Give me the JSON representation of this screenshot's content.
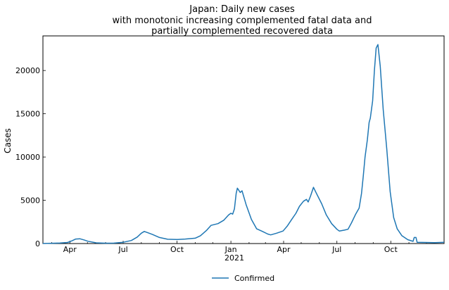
{
  "chart_data": {
    "type": "line",
    "title_lines": [
      "Japan: Daily new cases",
      "with monotonic increasing complemented fatal data and",
      "partially complemented recovered data"
    ],
    "xlabel": "",
    "ylabel": "Cases",
    "x_tick_labels": [
      "Apr",
      "Jul",
      "Oct",
      "Jan",
      "Apr",
      "Jul",
      "Oct"
    ],
    "x_year_label": "2021",
    "y_tick_labels": [
      "0",
      "5000",
      "10000",
      "15000",
      "20000"
    ],
    "ylim": [
      0,
      24000
    ],
    "xlim": [
      "2020-02-15",
      "2021-12-31"
    ],
    "grid": false,
    "legend_position": "bottom-center",
    "series": [
      {
        "name": "Confirmed",
        "color": "#1f77b4",
        "points": [
          [
            "2020-02-15",
            5
          ],
          [
            "2020-03-01",
            30
          ],
          [
            "2020-03-15",
            60
          ],
          [
            "2020-03-28",
            120
          ],
          [
            "2020-04-04",
            300
          ],
          [
            "2020-04-11",
            520
          ],
          [
            "2020-04-18",
            550
          ],
          [
            "2020-04-25",
            420
          ],
          [
            "2020-05-02",
            260
          ],
          [
            "2020-05-16",
            80
          ],
          [
            "2020-06-01",
            40
          ],
          [
            "2020-06-15",
            50
          ],
          [
            "2020-07-01",
            150
          ],
          [
            "2020-07-15",
            350
          ],
          [
            "2020-07-25",
            750
          ],
          [
            "2020-08-01",
            1200
          ],
          [
            "2020-08-06",
            1400
          ],
          [
            "2020-08-12",
            1250
          ],
          [
            "2020-08-20",
            1050
          ],
          [
            "2020-09-01",
            700
          ],
          [
            "2020-09-15",
            500
          ],
          [
            "2020-09-25",
            480
          ],
          [
            "2020-10-01",
            460
          ],
          [
            "2020-10-15",
            520
          ],
          [
            "2020-11-01",
            620
          ],
          [
            "2020-11-10",
            900
          ],
          [
            "2020-11-20",
            1500
          ],
          [
            "2020-11-28",
            2100
          ],
          [
            "2020-12-10",
            2300
          ],
          [
            "2020-12-20",
            2700
          ],
          [
            "2020-12-28",
            3300
          ],
          [
            "2021-01-01",
            3500
          ],
          [
            "2021-01-04",
            3400
          ],
          [
            "2021-01-07",
            4000
          ],
          [
            "2021-01-10",
            5800
          ],
          [
            "2021-01-12",
            6400
          ],
          [
            "2021-01-17",
            5900
          ],
          [
            "2021-01-20",
            6100
          ],
          [
            "2021-01-27",
            4500
          ],
          [
            "2021-02-05",
            2800
          ],
          [
            "2021-02-14",
            1700
          ],
          [
            "2021-02-24",
            1400
          ],
          [
            "2021-03-05",
            1100
          ],
          [
            "2021-03-10",
            1000
          ],
          [
            "2021-03-20",
            1200
          ],
          [
            "2021-03-31",
            1450
          ],
          [
            "2021-04-07",
            2000
          ],
          [
            "2021-04-15",
            2800
          ],
          [
            "2021-04-22",
            3500
          ],
          [
            "2021-04-28",
            4300
          ],
          [
            "2021-05-05",
            4900
          ],
          [
            "2021-05-10",
            5100
          ],
          [
            "2021-05-13",
            4800
          ],
          [
            "2021-05-17",
            5500
          ],
          [
            "2021-05-22",
            6500
          ],
          [
            "2021-05-27",
            5800
          ],
          [
            "2021-06-05",
            4600
          ],
          [
            "2021-06-13",
            3300
          ],
          [
            "2021-06-22",
            2300
          ],
          [
            "2021-07-01",
            1650
          ],
          [
            "2021-07-05",
            1450
          ],
          [
            "2021-07-14",
            1550
          ],
          [
            "2021-07-20",
            1650
          ],
          [
            "2021-07-26",
            2400
          ],
          [
            "2021-08-02",
            3400
          ],
          [
            "2021-08-08",
            4100
          ],
          [
            "2021-08-12",
            5800
          ],
          [
            "2021-08-15",
            7800
          ],
          [
            "2021-08-18",
            10000
          ],
          [
            "2021-08-22",
            12000
          ],
          [
            "2021-08-25",
            14000
          ],
          [
            "2021-08-27",
            14500
          ],
          [
            "2021-08-31",
            16500
          ],
          [
            "2021-09-03",
            20000
          ],
          [
            "2021-09-06",
            22600
          ],
          [
            "2021-09-09",
            23000
          ],
          [
            "2021-09-13",
            20500
          ],
          [
            "2021-09-18",
            15500
          ],
          [
            "2021-09-24",
            11000
          ],
          [
            "2021-09-30",
            6000
          ],
          [
            "2021-10-06",
            3000
          ],
          [
            "2021-10-12",
            1700
          ],
          [
            "2021-10-20",
            900
          ],
          [
            "2021-10-30",
            450
          ],
          [
            "2021-11-08",
            250
          ],
          [
            "2021-11-10",
            700
          ],
          [
            "2021-11-13",
            700
          ],
          [
            "2021-11-15",
            150
          ],
          [
            "2021-12-01",
            120
          ],
          [
            "2021-12-15",
            100
          ],
          [
            "2021-12-31",
            150
          ]
        ]
      }
    ]
  }
}
